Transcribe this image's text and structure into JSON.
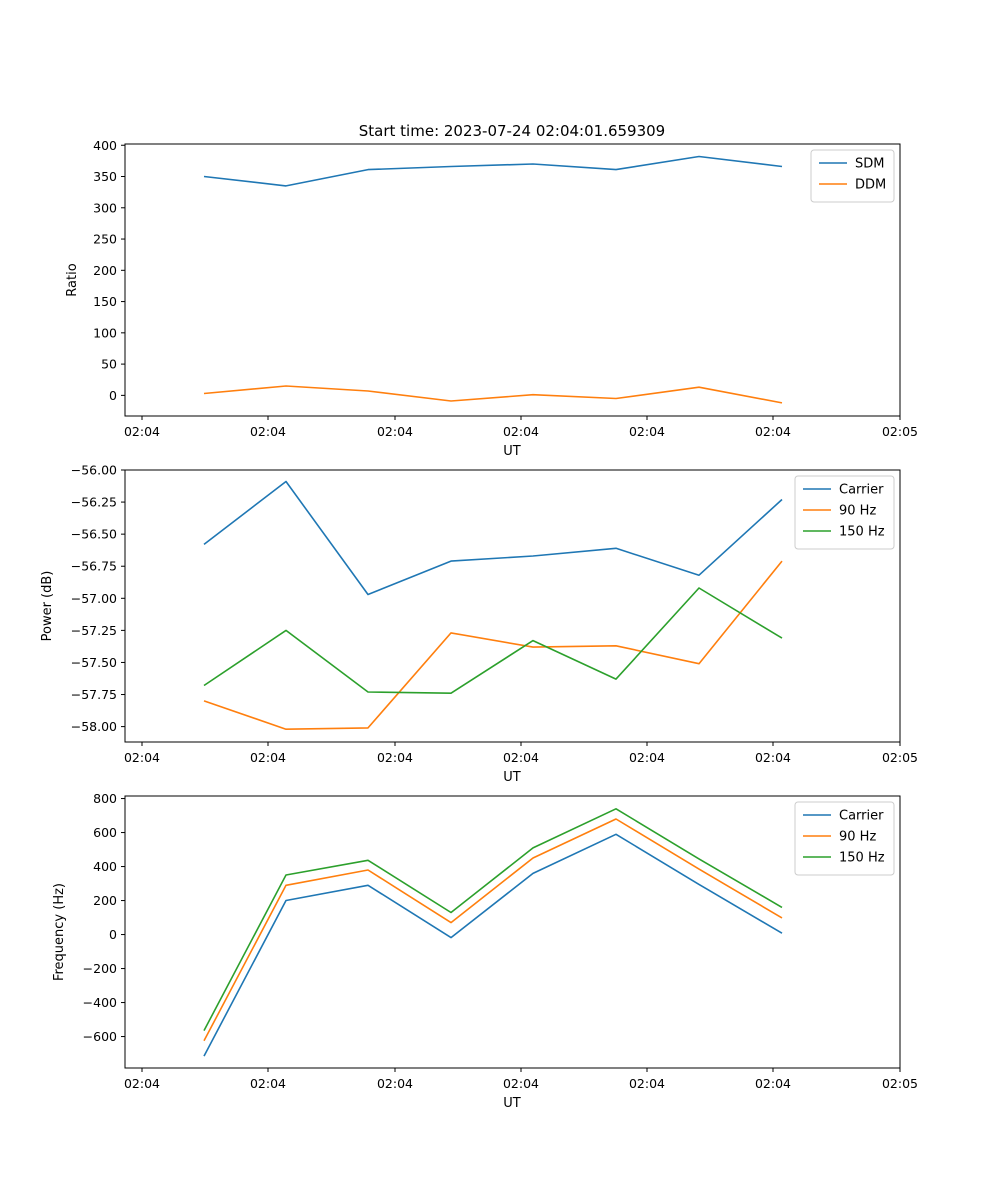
{
  "figure_title": "Start time: 2023-07-24 02:04:01.659309",
  "chart_data": [
    {
      "type": "line",
      "title": "Start time: 2023-07-24 02:04:01.659309",
      "xlabel": "UT",
      "ylabel": "Ratio",
      "x_tick_labels": [
        "02:04",
        "02:04",
        "02:04",
        "02:04",
        "02:04",
        "02:04",
        "02:05"
      ],
      "y_ticks": [
        0,
        50,
        100,
        150,
        200,
        250,
        300,
        350,
        400
      ],
      "y_tick_labels": [
        "0",
        "50",
        "100",
        "150",
        "200",
        "250",
        "300",
        "350",
        "400"
      ],
      "ylim": [
        -33,
        402
      ],
      "legend_position": "top-right",
      "series": [
        {
          "name": "SDM",
          "color": "#1f77b4",
          "values": [
            350,
            335,
            361,
            366,
            370,
            361,
            382,
            366
          ]
        },
        {
          "name": "DDM",
          "color": "#ff7f0e",
          "values": [
            3,
            15,
            7,
            -9,
            1,
            -5,
            13,
            -12
          ]
        }
      ]
    },
    {
      "type": "line",
      "xlabel": "UT",
      "ylabel": "Power (dB)",
      "x_tick_labels": [
        "02:04",
        "02:04",
        "02:04",
        "02:04",
        "02:04",
        "02:04",
        "02:05"
      ],
      "y_ticks": [
        -58.0,
        -57.75,
        -57.5,
        -57.25,
        -57.0,
        -56.75,
        -56.5,
        -56.25,
        -56.0
      ],
      "y_tick_labels": [
        "−58.00",
        "−57.75",
        "−57.50",
        "−57.25",
        "−57.00",
        "−56.75",
        "−56.50",
        "−56.25",
        "−56.00"
      ],
      "ylim": [
        -58.12,
        -56.0
      ],
      "legend_position": "top-right",
      "series": [
        {
          "name": "Carrier",
          "color": "#1f77b4",
          "values": [
            -56.58,
            -56.09,
            -56.97,
            -56.71,
            -56.67,
            -56.61,
            -56.82,
            -56.23
          ]
        },
        {
          "name": "90 Hz",
          "color": "#ff7f0e",
          "values": [
            -57.8,
            -58.02,
            -58.01,
            -57.27,
            -57.38,
            -57.37,
            -57.51,
            -56.71
          ]
        },
        {
          "name": "150 Hz",
          "color": "#2ca02c",
          "values": [
            -57.68,
            -57.25,
            -57.73,
            -57.74,
            -57.33,
            -57.63,
            -56.92,
            -57.31
          ]
        }
      ]
    },
    {
      "type": "line",
      "xlabel": "UT",
      "ylabel": "Frequency (Hz)",
      "x_tick_labels": [
        "02:04",
        "02:04",
        "02:04",
        "02:04",
        "02:04",
        "02:04",
        "02:05"
      ],
      "y_ticks": [
        -600,
        -400,
        -200,
        0,
        200,
        400,
        600,
        800
      ],
      "y_tick_labels": [
        "−600",
        "−400",
        "−200",
        "0",
        "200",
        "400",
        "600",
        "800"
      ],
      "ylim": [
        -785,
        815
      ],
      "legend_position": "top-right",
      "series": [
        {
          "name": "Carrier",
          "color": "#1f77b4",
          "values": [
            -715,
            200,
            290,
            -18,
            360,
            590,
            295,
            8
          ]
        },
        {
          "name": "90 Hz",
          "color": "#ff7f0e",
          "values": [
            -625,
            290,
            380,
            70,
            450,
            680,
            385,
            98
          ]
        },
        {
          "name": "150 Hz",
          "color": "#2ca02c",
          "values": [
            -565,
            350,
            437,
            130,
            510,
            740,
            445,
            160
          ]
        }
      ]
    }
  ]
}
